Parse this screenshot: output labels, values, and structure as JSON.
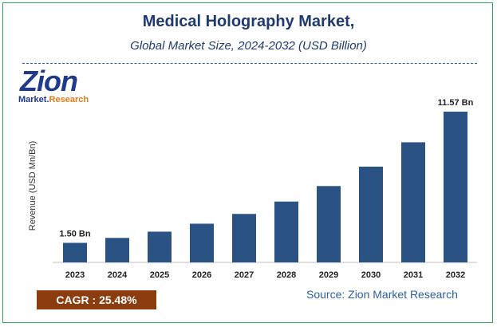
{
  "header": {
    "title": "Medical Holography Market,",
    "subtitle": "Global Market Size, 2024-2032 (USD Billion)"
  },
  "logo": {
    "brand": "Zion",
    "sub_part1": "Market.",
    "sub_part2": "Research"
  },
  "chart_data": {
    "type": "bar",
    "title": "Medical Holography Market,",
    "subtitle": "Global Market Size, 2024-2032 (USD Billion)",
    "xlabel": "",
    "ylabel": "Revenue (USD Mn/Bn)",
    "categories": [
      "2023",
      "2024",
      "2025",
      "2026",
      "2027",
      "2028",
      "2029",
      "2030",
      "2031",
      "2032"
    ],
    "values": [
      1.5,
      1.88,
      2.36,
      2.97,
      3.72,
      4.67,
      5.86,
      7.35,
      9.22,
      11.57
    ],
    "data_labels": [
      "1.50 Bn",
      "",
      "",
      "",
      "",
      "",
      "",
      "",
      "",
      "11.57 Bn"
    ],
    "ylim": [
      0,
      12
    ],
    "grid": false,
    "bar_color": "#2a5384"
  },
  "footer": {
    "cagr": "CAGR :  25.48%",
    "source": "Source: Zion Market Research"
  },
  "colors": {
    "title": "#1f3a6e",
    "border": "#2fa84f",
    "cagr_bg": "#8b3d0f"
  }
}
